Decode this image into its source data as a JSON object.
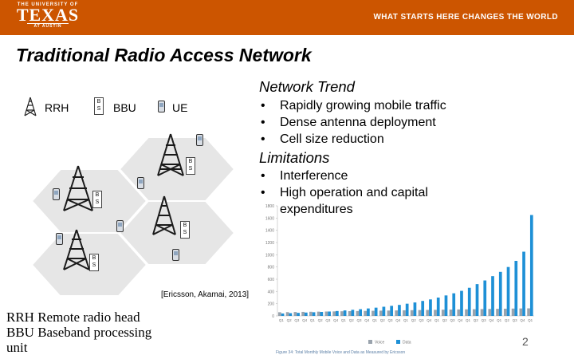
{
  "header": {
    "logo_top": "THE UNIVERSITY OF",
    "logo_main": "TEXAS",
    "logo_bottom": "AT AUSTIN",
    "tagline": "WHAT STARTS HERE CHANGES THE WORLD",
    "bar_color": "#cc5500"
  },
  "slide": {
    "title": "Traditional Radio Access Network",
    "legend": {
      "rrh": "RRH",
      "bbu": "BBU",
      "ue": "UE",
      "bs_label": "B S"
    },
    "network_trend": {
      "title": "Network Trend",
      "items": [
        "Rapidly growing mobile traffic",
        "Dense antenna deployment",
        "Cell size reduction"
      ]
    },
    "limitations": {
      "title": "Limitations",
      "items": [
        "Interference",
        "High operation and capital expenditures"
      ]
    },
    "citation": "[Ericsson, Akamai, 2013]",
    "footnote": [
      "RRH Remote radio head",
      "BBU Baseband processing",
      "unit"
    ],
    "page_number": "2",
    "icons": [
      "antenna-tower-icon",
      "bbu-box-icon",
      "phone-icon"
    ]
  },
  "chart_data": {
    "type": "bar",
    "caption": "Figure 34: Total Monthly Mobile Voice and Data as Measured by Ericsson",
    "ytick_labels": [
      "0",
      "200",
      "400",
      "600",
      "800",
      "1000",
      "1200",
      "1400",
      "1600",
      "1800"
    ],
    "ylim": [
      0,
      1800
    ],
    "xtick_labels": [
      "Q1",
      "Q2",
      "Q3",
      "Q4",
      "Q1",
      "Q2",
      "Q3",
      "Q4",
      "Q1",
      "Q2",
      "Q3",
      "Q4",
      "Q1",
      "Q2",
      "Q3",
      "Q4",
      "Q1",
      "Q2",
      "Q3",
      "Q4",
      "Q1",
      "Q2",
      "Q3",
      "Q4",
      "Q1",
      "Q2",
      "Q3",
      "Q4",
      "Q1",
      "Q2",
      "Q3",
      "Q4",
      "Q1"
    ],
    "legend": [
      "Voice",
      "Data"
    ],
    "colors": {
      "voice": "#9aa3ad",
      "data": "#1e90d6"
    },
    "series": [
      {
        "name": "Voice",
        "values": [
          60,
          62,
          64,
          66,
          68,
          70,
          72,
          74,
          76,
          78,
          80,
          82,
          84,
          86,
          88,
          90,
          92,
          94,
          96,
          98,
          100,
          102,
          104,
          106,
          108,
          110,
          112,
          114,
          116,
          118,
          120,
          122,
          124
        ]
      },
      {
        "name": "Data",
        "values": [
          40,
          45,
          50,
          55,
          60,
          65,
          72,
          80,
          90,
          100,
          110,
          122,
          135,
          150,
          165,
          180,
          200,
          220,
          245,
          270,
          300,
          335,
          370,
          410,
          460,
          520,
          580,
          650,
          720,
          800,
          900,
          1050,
          1650
        ]
      }
    ]
  }
}
